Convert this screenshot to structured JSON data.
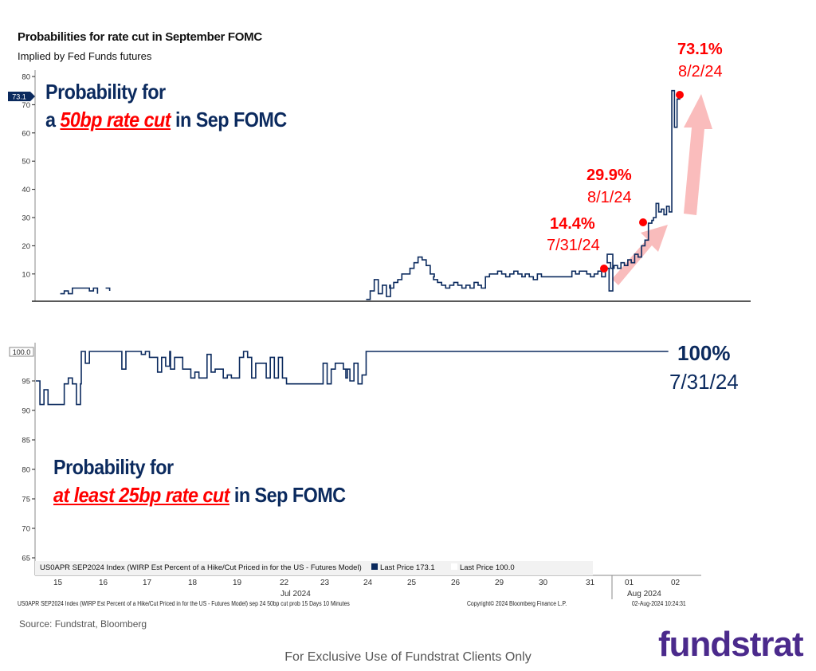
{
  "header": {
    "title": "Probabilities for rate cut in September FOMC",
    "subtitle": "Implied by Fed Funds futures"
  },
  "colors": {
    "series": "#0b2a5e",
    "annotation": "#ff0000",
    "arrow": "#f9b5b5",
    "logo": "#4b2a8c"
  },
  "chart_data": [
    {
      "type": "line",
      "ylim": [
        0,
        80
      ],
      "yticks": [
        "80",
        "70",
        "60",
        "50",
        "40",
        "30",
        "20",
        "10"
      ],
      "last_value_tag": "73.1",
      "overlay": {
        "line1": "Probability for",
        "line2_prefix": "a ",
        "line2_em": "50bp rate cut",
        "line2_suffix": " in Sep FOMC"
      },
      "annotations": [
        {
          "pct": "14.4%",
          "date": "7/31/24"
        },
        {
          "pct": "29.9%",
          "date": "8/1/24"
        },
        {
          "pct": "73.1%",
          "date": "8/2/24"
        }
      ],
      "series": {
        "days": {
          "15": [
            null,
            null,
            null,
            null,
            null,
            null,
            3,
            4,
            3,
            5,
            5,
            5
          ],
          "16": [
            5,
            5,
            4,
            5,
            3,
            null,
            5,
            4,
            null,
            null,
            null,
            null
          ],
          "24": [
            null,
            null,
            null,
            null,
            null,
            1,
            4,
            8,
            3,
            6,
            2,
            6
          ],
          "25": [
            5,
            7,
            8,
            10,
            10,
            12,
            14,
            16,
            15,
            13,
            10,
            9
          ],
          "26": [
            8,
            7,
            6,
            5,
            6,
            7,
            6,
            5,
            6,
            5,
            7,
            6
          ],
          "29": [
            6,
            5,
            9,
            10,
            10,
            11,
            10,
            9,
            10,
            11,
            10,
            9
          ],
          "30": [
            9,
            10,
            9,
            8,
            10,
            9,
            9,
            9,
            9,
            9,
            9,
            9
          ],
          "31": [
            9,
            11,
            10,
            11,
            11,
            10,
            9,
            10,
            11,
            9,
            12,
            4,
            17
          ],
          "01": [
            14,
            12,
            13,
            12,
            14,
            13,
            15,
            14,
            17,
            16,
            20,
            22,
            28,
            29
          ],
          "02": [
            30,
            35,
            32,
            33,
            31,
            34,
            32,
            75,
            62,
            72,
            73,
            null,
            null,
            null,
            null,
            null,
            null,
            null
          ]
        }
      }
    },
    {
      "type": "line",
      "ylim": [
        64,
        100
      ],
      "yticks": [
        "95",
        "90",
        "85",
        "80",
        "75",
        "70",
        "65"
      ],
      "last_value_tag": "100.0",
      "overlay": {
        "line1": "Probability for",
        "line2_prefix": "",
        "line2_em": "at least 25bp rate cut",
        "line2_suffix": " in Sep FOMC"
      },
      "annotations": [
        {
          "pct": "100%",
          "date": "7/31/24"
        }
      ],
      "series": {
        "days": {
          "15": [
            95,
            91,
            93.5,
            91,
            91,
            91,
            91,
            94.5,
            95.5,
            94.5,
            91,
            94.5
          ],
          "16": [
            100,
            98,
            100,
            100,
            100,
            100,
            100,
            100,
            100,
            100,
            97,
            100
          ],
          "17": [
            100,
            100,
            100,
            100,
            99.5,
            100,
            99,
            99,
            96.5,
            99,
            97.5,
            100
          ],
          "18": [
            97,
            99,
            99,
            97,
            97,
            95.5,
            96.5,
            95.5,
            95.5,
            99.5,
            96.5,
            97
          ],
          "19": [
            97,
            97,
            95.5,
            96,
            95.5,
            95.5,
            99,
            100,
            99,
            95.5,
            98,
            98
          ],
          "22": [
            98,
            95.5,
            99,
            95.5,
            99,
            95.5,
            94.5,
            94.5,
            94.5,
            94.5,
            94.5,
            94.5
          ],
          "23": [
            94.5,
            94.5,
            94.5,
            94.5,
            94.5,
            98,
            94.5,
            97,
            98,
            98,
            97,
            95.5
          ],
          "24": [
            97,
            95,
            98,
            94.5,
            96,
            100,
            100,
            100,
            100,
            100,
            100,
            100
          ],
          "25": [
            100,
            100
          ],
          "26": [
            100,
            100
          ],
          "29": [
            100,
            100
          ],
          "30": [
            100,
            100
          ],
          "31": [
            100,
            100
          ],
          "01": [
            100,
            100
          ],
          "02": [
            100,
            100,
            null,
            null
          ]
        }
      }
    }
  ],
  "xaxis": {
    "days": [
      "15",
      "16",
      "17",
      "18",
      "19",
      "22",
      "23",
      "24",
      "25",
      "26",
      "29",
      "30",
      "31",
      "01",
      "02"
    ],
    "month1": "Jul 2024",
    "month2": "Aug 2024"
  },
  "legend": {
    "text": "US0APR SEP2024 Index (WIRP Est Percent of a Hike/Cut Priced in for the US - Futures Model)",
    "item1": "Last Price 173.1",
    "item2": "Last Price 100.0"
  },
  "footer": {
    "ticker_desc": "US0APR SEP2024 Index (WIRP Est Percent of a Hike/Cut Priced in for the US - Futures Model) sep 24 50bp cut prob 15 Days 10 Minutes",
    "copyright": "Copyright© 2024 Bloomberg Finance L.P.",
    "timestamp": "02-Aug-2024 10:24:31"
  },
  "source": "Source: Fundstrat, Bloomberg",
  "disclaimer": "For Exclusive Use of Fundstrat Clients Only",
  "logo": "fundstrat"
}
